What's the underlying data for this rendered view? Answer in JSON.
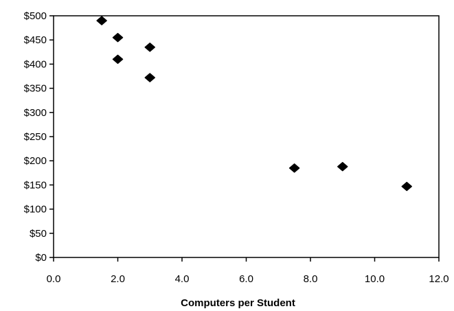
{
  "chart_data": {
    "type": "scatter",
    "title": "",
    "xlabel": "Computers per Student",
    "ylabel": "",
    "xlim": [
      0,
      12
    ],
    "ylim": [
      0,
      500
    ],
    "x_ticks": [
      0,
      2,
      4,
      6,
      8,
      10,
      12
    ],
    "x_tick_labels": [
      "0.0",
      "2.0",
      "4.0",
      "6.0",
      "8.0",
      "10.0",
      "12.0"
    ],
    "y_ticks": [
      0,
      50,
      100,
      150,
      200,
      250,
      300,
      350,
      400,
      450,
      500
    ],
    "y_tick_labels": [
      "$0",
      "$50",
      "$100",
      "$150",
      "$200",
      "$250",
      "$300",
      "$350",
      "$400",
      "$450",
      "$500"
    ],
    "grid": false,
    "legend": "none",
    "marker": "diamond",
    "marker_color": "#000000",
    "series": [
      {
        "points": [
          {
            "x": 1.5,
            "y": 490
          },
          {
            "x": 2.0,
            "y": 455
          },
          {
            "x": 2.0,
            "y": 410
          },
          {
            "x": 3.0,
            "y": 435
          },
          {
            "x": 3.0,
            "y": 372
          },
          {
            "x": 7.5,
            "y": 185
          },
          {
            "x": 9.0,
            "y": 188
          },
          {
            "x": 11.0,
            "y": 147
          }
        ]
      }
    ]
  }
}
